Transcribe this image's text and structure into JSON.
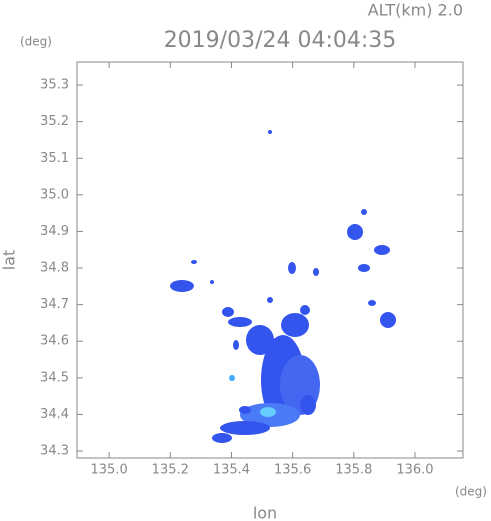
{
  "chart_data": {
    "type": "radar-map",
    "title": "2019/03/24 04:04:35",
    "subtitle": "ALT(km) 2.0",
    "xlabel": "lon",
    "ylabel": "lat",
    "xunit": "(deg)",
    "yunit": "(deg)",
    "xlim": [
      134.895,
      136.157
    ],
    "ylim": [
      34.281,
      35.363
    ],
    "xticks": [
      {
        "value": 135,
        "label": "135.0"
      },
      135.2,
      135.4,
      135.6,
      135.8,
      {
        "value": 136,
        "label": "136.0"
      }
    ],
    "yticks": [
      34.3,
      34.4,
      34.5,
      34.6,
      34.7,
      34.8,
      34.9,
      {
        "value": 35,
        "label": "35.0"
      },
      35.1,
      35.2,
      35.3
    ]
  }
}
